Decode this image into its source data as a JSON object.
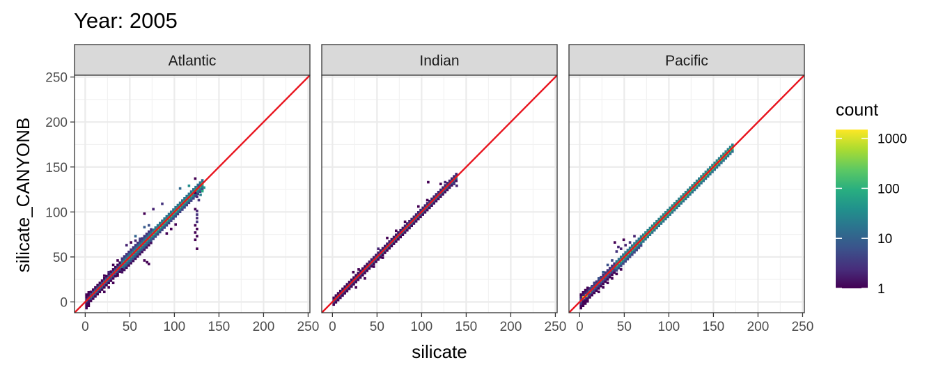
{
  "chart_data": {
    "type": "heatmap",
    "title": "Year: 2005",
    "xlabel": "silicate",
    "ylabel": "silicate_CANYONB",
    "xlim": [
      -12,
      252
    ],
    "ylim": [
      -12,
      252
    ],
    "x_ticks": [
      0,
      50,
      100,
      150,
      200,
      250
    ],
    "y_ticks": [
      0,
      50,
      100,
      150,
      200,
      250
    ],
    "x_tick_labels": [
      "0",
      "50",
      "100",
      "150",
      "200",
      "250"
    ],
    "y_tick_labels": [
      "0",
      "50",
      "100",
      "150",
      "200",
      "250"
    ],
    "grid": true,
    "reference_line": {
      "slope": 1,
      "intercept": 0,
      "color": "#e8141e"
    },
    "legend": {
      "title": "count",
      "scale": "log10",
      "range": [
        1,
        1500
      ],
      "ticks": [
        1,
        10,
        100,
        1000
      ],
      "tick_labels": [
        "1",
        "10",
        "100",
        "1000"
      ],
      "position": "right",
      "colors": [
        "#440154",
        "#3b528b",
        "#21918c",
        "#5ec962",
        "#fde725"
      ]
    },
    "panels": [
      {
        "label": "Atlantic",
        "extent": [
          0,
          132
        ],
        "bands": [
          {
            "x0": 0,
            "x1": 5,
            "half_width": 8,
            "count": 3
          },
          {
            "x0": 5,
            "x1": 40,
            "half_width": 5,
            "count": 12
          },
          {
            "x0": 40,
            "x1": 75,
            "half_width": 8,
            "count": 30
          },
          {
            "x0": 75,
            "x1": 132,
            "half_width": 6,
            "count": 60
          }
        ],
        "cells": [
          [
            65,
            97,
            1
          ],
          [
            75,
            102,
            2
          ],
          [
            85,
            108,
            3
          ],
          [
            45,
            62,
            2
          ],
          [
            50,
            65,
            1
          ],
          [
            55,
            67,
            2
          ],
          [
            60,
            69,
            4
          ],
          [
            35,
            45,
            1
          ],
          [
            30,
            40,
            1
          ],
          [
            25,
            32,
            2
          ],
          [
            20,
            28,
            1
          ],
          [
            65,
            45,
            1
          ],
          [
            68,
            43,
            1
          ],
          [
            70,
            41,
            1
          ],
          [
            40,
            35,
            1
          ],
          [
            35,
            28,
            1
          ],
          [
            30,
            20,
            1
          ],
          [
            25,
            15,
            1
          ],
          [
            20,
            10,
            1
          ],
          [
            90,
            75,
            1
          ],
          [
            95,
            80,
            1
          ],
          [
            100,
            85,
            1
          ],
          [
            122,
            120,
            1
          ],
          [
            124,
            116,
            2
          ],
          [
            126,
            112,
            3
          ],
          [
            128,
            118,
            20
          ],
          [
            130,
            122,
            80
          ],
          [
            132,
            126,
            40
          ],
          [
            122,
            136,
            1
          ],
          [
            126,
            128,
            5
          ],
          [
            122,
            102,
            1
          ],
          [
            124,
            100,
            2
          ],
          [
            124,
            96,
            3
          ],
          [
            124,
            92,
            2
          ],
          [
            124,
            88,
            3
          ],
          [
            122,
            84,
            1
          ],
          [
            124,
            80,
            1
          ],
          [
            122,
            76,
            1
          ],
          [
            124,
            72,
            1
          ],
          [
            122,
            68,
            1
          ],
          [
            124,
            58,
            1
          ],
          [
            105,
            125,
            12
          ],
          [
            115,
            128,
            35
          ],
          [
            65,
            82,
            8
          ],
          [
            70,
            84,
            6
          ],
          [
            55,
            72,
            10
          ]
        ]
      },
      {
        "label": "Indian",
        "extent": [
          0,
          140
        ],
        "bands": [
          {
            "x0": 0,
            "x1": 40,
            "half_width": 4,
            "count": 5
          },
          {
            "x0": 40,
            "x1": 80,
            "half_width": 4,
            "count": 8
          },
          {
            "x0": 80,
            "x1": 140,
            "half_width": 4,
            "count": 10
          }
        ],
        "cells": [
          [
            22,
            32,
            1
          ],
          [
            28,
            35,
            1
          ],
          [
            25,
            15,
            1
          ],
          [
            35,
            25,
            1
          ],
          [
            45,
            38,
            1
          ],
          [
            55,
            48,
            1
          ],
          [
            60,
            70,
            1
          ],
          [
            70,
            78,
            1
          ],
          [
            80,
            88,
            1
          ],
          [
            95,
            105,
            1
          ],
          [
            105,
            112,
            1
          ],
          [
            120,
            130,
            1
          ],
          [
            125,
            132,
            2
          ],
          [
            130,
            128,
            3
          ],
          [
            135,
            130,
            3
          ],
          [
            138,
            128,
            2
          ],
          [
            106,
            132,
            1
          ],
          [
            50,
            58,
            2
          ]
        ]
      },
      {
        "label": "Pacific",
        "extent": [
          0,
          172
        ],
        "bands": [
          {
            "x0": 0,
            "x1": 10,
            "half_width": 8,
            "count": 6
          },
          {
            "x0": 10,
            "x1": 40,
            "half_width": 6,
            "count": 10
          },
          {
            "x0": 40,
            "x1": 70,
            "half_width": 6,
            "count": 60
          },
          {
            "x0": 70,
            "x1": 172,
            "half_width": 4,
            "count": 120
          }
        ],
        "cells": [
          [
            3,
            4,
            1500
          ],
          [
            6,
            6,
            800
          ],
          [
            10,
            10,
            300
          ],
          [
            12,
            15,
            5
          ],
          [
            15,
            20,
            4
          ],
          [
            20,
            25,
            6
          ],
          [
            25,
            32,
            8
          ],
          [
            30,
            40,
            6
          ],
          [
            35,
            45,
            5
          ],
          [
            40,
            55,
            3
          ],
          [
            45,
            58,
            2
          ],
          [
            50,
            62,
            2
          ],
          [
            55,
            65,
            3
          ],
          [
            60,
            72,
            2
          ],
          [
            38,
            65,
            1
          ],
          [
            42,
            60,
            2
          ],
          [
            48,
            68,
            1
          ],
          [
            20,
            10,
            1
          ],
          [
            25,
            15,
            1
          ],
          [
            30,
            20,
            1
          ],
          [
            35,
            25,
            1
          ],
          [
            40,
            30,
            1
          ],
          [
            45,
            35,
            1
          ],
          [
            5,
            0,
            1
          ],
          [
            3,
            -1,
            1
          ]
        ]
      }
    ]
  }
}
